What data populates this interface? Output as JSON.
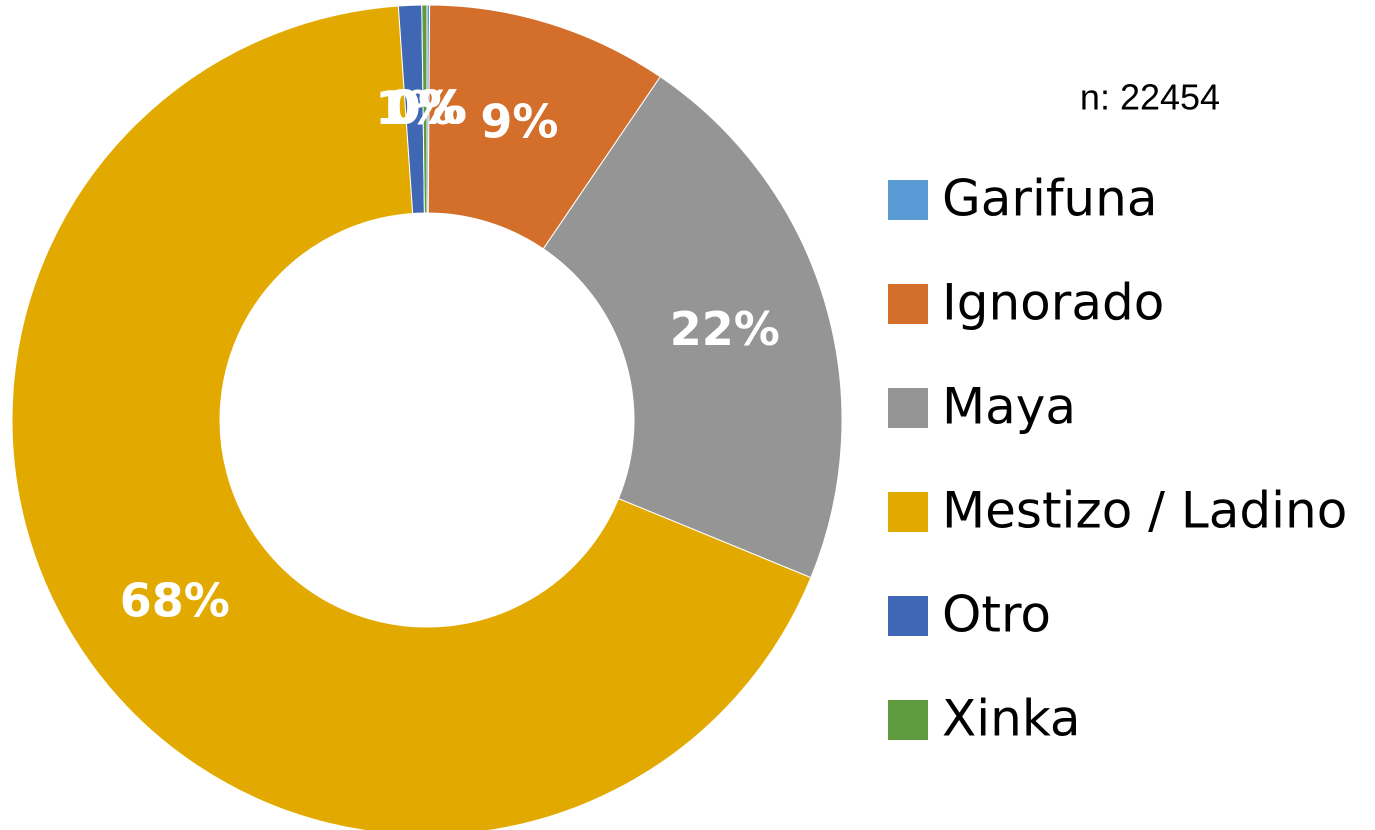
{
  "chart_data": {
    "type": "donut",
    "annotation": "n: 22454",
    "categories": [
      "Garifuna",
      "Ignorado",
      "Maya",
      "Mestizo / Ladino",
      "Otro",
      "Xinka"
    ],
    "values": [
      0.1,
      9.4,
      21.7,
      67.7,
      0.9,
      0.2
    ],
    "value_labels": [
      "0%",
      "9%",
      "22%",
      "68%",
      "1%",
      "0%"
    ],
    "colors": [
      "#5b9bd5",
      "#d36e2b",
      "#959595",
      "#e2aa00",
      "#3f67b4",
      "#5f9a3f"
    ],
    "legend": "right"
  }
}
